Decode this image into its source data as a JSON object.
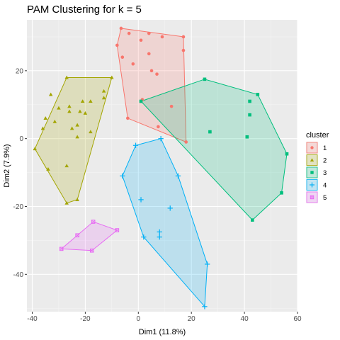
{
  "chart_data": {
    "type": "scatter",
    "title": "PAM Clustering for k = 5",
    "xlabel": "Dim1 (11.8%)",
    "ylabel": "Dim2 (7.9%)",
    "xlim": [
      -42,
      60
    ],
    "ylim": [
      -51,
      35
    ],
    "x_ticks": [
      -40,
      -20,
      0,
      20,
      40,
      60
    ],
    "y_ticks": [
      -40,
      -20,
      0,
      20
    ],
    "grid": true,
    "legend": {
      "title": "cluster",
      "position": "right"
    },
    "series": [
      {
        "name": "1",
        "color": "#F8766D",
        "fill": "#F8766D",
        "shape": "circle",
        "points": [
          [
            -6.5,
            32.5
          ],
          [
            -3.5,
            31
          ],
          [
            4,
            31
          ],
          [
            9,
            30
          ],
          [
            -8,
            27.5
          ],
          [
            1,
            29
          ],
          [
            -6,
            24
          ],
          [
            17,
            30
          ],
          [
            17,
            26
          ],
          [
            -2,
            22
          ],
          [
            4,
            25
          ],
          [
            5,
            20
          ],
          [
            7,
            19
          ],
          [
            1.5,
            11.5
          ],
          [
            -4,
            6
          ],
          [
            12.5,
            9.5
          ],
          [
            7.5,
            3.5
          ],
          [
            18,
            -1
          ]
        ],
        "hull": [
          [
            -6.5,
            32.5
          ],
          [
            17,
            30
          ],
          [
            18,
            -1
          ],
          [
            -4,
            6
          ],
          [
            -8,
            27.5
          ]
        ]
      },
      {
        "name": "2",
        "color": "#A3A500",
        "fill": "#A3A500",
        "shape": "triangle",
        "points": [
          [
            -27,
            18
          ],
          [
            -10,
            18
          ],
          [
            -13,
            14
          ],
          [
            -33,
            13
          ],
          [
            -13,
            12
          ],
          [
            -18,
            11
          ],
          [
            -21,
            11
          ],
          [
            -30,
            9
          ],
          [
            -26,
            9.5
          ],
          [
            -20,
            7.5
          ],
          [
            -26,
            8
          ],
          [
            -22,
            8
          ],
          [
            -36,
            3
          ],
          [
            -35,
            6
          ],
          [
            -31.5,
            5
          ],
          [
            -23,
            4
          ],
          [
            -25,
            3
          ],
          [
            -18,
            2
          ],
          [
            -23,
            0.5
          ],
          [
            -39,
            -3
          ],
          [
            -27,
            -8
          ],
          [
            -34,
            -9
          ],
          [
            -23,
            -18
          ],
          [
            -27,
            -19
          ]
        ],
        "hull": [
          [
            -27,
            18
          ],
          [
            -10,
            18
          ],
          [
            -23,
            -18
          ],
          [
            -27,
            -19
          ],
          [
            -39,
            -3
          ]
        ]
      },
      {
        "name": "3",
        "color": "#00BF7D",
        "fill": "#00BF7D",
        "shape": "square",
        "points": [
          [
            25,
            17.5
          ],
          [
            45,
            13
          ],
          [
            1,
            11
          ],
          [
            42,
            11
          ],
          [
            42,
            7
          ],
          [
            27,
            2
          ],
          [
            41,
            0.5
          ],
          [
            56,
            -4.5
          ],
          [
            54,
            -16
          ],
          [
            43,
            -24
          ]
        ],
        "hull": [
          [
            1,
            11
          ],
          [
            25,
            17.5
          ],
          [
            45,
            13
          ],
          [
            56,
            -4.5
          ],
          [
            54,
            -16
          ],
          [
            43,
            -24
          ]
        ]
      },
      {
        "name": "4",
        "color": "#00B0F6",
        "fill": "#00B0F6",
        "shape": "cross",
        "points": [
          [
            8.5,
            0
          ],
          [
            -1,
            -2
          ],
          [
            -6,
            -11
          ],
          [
            15,
            -11
          ],
          [
            1,
            -18
          ],
          [
            12,
            -20.5
          ],
          [
            8,
            -27.5
          ],
          [
            8,
            -29
          ],
          [
            2,
            -29
          ],
          [
            26,
            -37
          ],
          [
            25,
            -49.5
          ]
        ],
        "hull": [
          [
            -1,
            -2
          ],
          [
            8.5,
            0
          ],
          [
            15,
            -11
          ],
          [
            26,
            -37
          ],
          [
            25,
            -49.5
          ],
          [
            2,
            -29
          ],
          [
            -6,
            -11
          ]
        ]
      },
      {
        "name": "5",
        "color": "#E76BF3",
        "fill": "#E76BF3",
        "shape": "boxcross",
        "points": [
          [
            -17,
            -24.5
          ],
          [
            -8,
            -27
          ],
          [
            -23,
            -28.5
          ],
          [
            -29,
            -32.5
          ],
          [
            -17.5,
            -33
          ]
        ],
        "hull": [
          [
            -17,
            -24.5
          ],
          [
            -8,
            -27
          ],
          [
            -17.5,
            -33
          ],
          [
            -29,
            -32.5
          ],
          [
            -23,
            -28.5
          ]
        ]
      }
    ]
  }
}
